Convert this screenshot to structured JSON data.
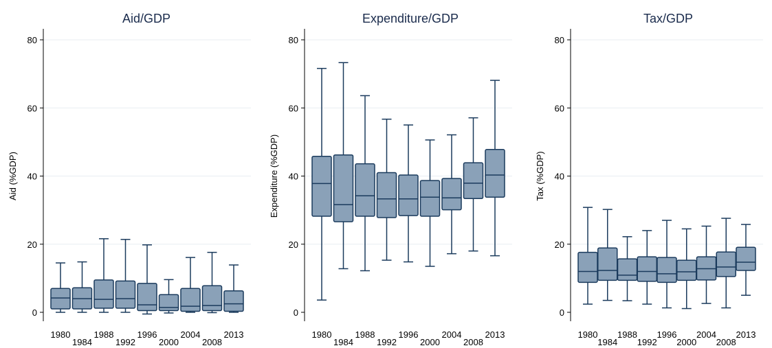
{
  "chart_data": [
    {
      "type": "box",
      "title": "Aid/GDP",
      "ylabel": "Aid (%GDP)",
      "ylim": [
        0,
        80
      ],
      "yticks": [
        0,
        20,
        40,
        60,
        80
      ],
      "categories": [
        "1980",
        "1984",
        "1988",
        "1992",
        "1996",
        "2000",
        "2004",
        "2008",
        "2013"
      ],
      "boxes": [
        {
          "whisker_low": 0.0,
          "q1": 1.0,
          "median": 4.2,
          "q3": 7.0,
          "whisker_high": 14.5
        },
        {
          "whisker_low": 0.0,
          "q1": 1.0,
          "median": 4.0,
          "q3": 7.2,
          "whisker_high": 14.8
        },
        {
          "whisker_low": 0.0,
          "q1": 1.2,
          "median": 3.8,
          "q3": 9.5,
          "whisker_high": 21.6
        },
        {
          "whisker_low": 0.0,
          "q1": 1.2,
          "median": 4.0,
          "q3": 9.2,
          "whisker_high": 21.4
        },
        {
          "whisker_low": -0.5,
          "q1": 0.5,
          "median": 2.2,
          "q3": 8.5,
          "whisker_high": 19.8
        },
        {
          "whisker_low": -0.2,
          "q1": 0.5,
          "median": 1.4,
          "q3": 5.2,
          "whisker_high": 9.6
        },
        {
          "whisker_low": 0.0,
          "q1": 0.3,
          "median": 1.8,
          "q3": 7.0,
          "whisker_high": 16.1
        },
        {
          "whisker_low": -0.1,
          "q1": 0.5,
          "median": 2.0,
          "q3": 7.8,
          "whisker_high": 17.6
        },
        {
          "whisker_low": 0.0,
          "q1": 0.3,
          "median": 2.5,
          "q3": 6.3,
          "whisker_high": 13.9
        }
      ]
    },
    {
      "type": "box",
      "title": "Expenditure/GDP",
      "ylabel": "Expenditure (%GDP)",
      "ylim": [
        0,
        80
      ],
      "yticks": [
        0,
        20,
        40,
        60,
        80
      ],
      "categories": [
        "1980",
        "1984",
        "1988",
        "1992",
        "1996",
        "2000",
        "2004",
        "2008",
        "2013"
      ],
      "boxes": [
        {
          "whisker_low": 3.6,
          "q1": 28.2,
          "median": 37.8,
          "q3": 45.8,
          "whisker_high": 71.6
        },
        {
          "whisker_low": 12.8,
          "q1": 26.6,
          "median": 31.6,
          "q3": 46.2,
          "whisker_high": 73.3
        },
        {
          "whisker_low": 12.2,
          "q1": 28.2,
          "median": 34.2,
          "q3": 43.6,
          "whisker_high": 63.6
        },
        {
          "whisker_low": 15.3,
          "q1": 27.8,
          "median": 33.3,
          "q3": 41.0,
          "whisker_high": 56.7
        },
        {
          "whisker_low": 14.8,
          "q1": 28.4,
          "median": 33.3,
          "q3": 40.3,
          "whisker_high": 55.0
        },
        {
          "whisker_low": 13.5,
          "q1": 28.2,
          "median": 33.8,
          "q3": 38.7,
          "whisker_high": 50.6
        },
        {
          "whisker_low": 17.2,
          "q1": 30.1,
          "median": 33.6,
          "q3": 39.3,
          "whisker_high": 52.1
        },
        {
          "whisker_low": 18.0,
          "q1": 33.4,
          "median": 37.9,
          "q3": 43.9,
          "whisker_high": 57.1
        },
        {
          "whisker_low": 16.6,
          "q1": 33.8,
          "median": 40.3,
          "q3": 47.8,
          "whisker_high": 68.1
        }
      ]
    },
    {
      "type": "box",
      "title": "Tax/GDP",
      "ylabel": "Tax (%GDP)",
      "ylim": [
        0,
        80
      ],
      "yticks": [
        0,
        20,
        40,
        60,
        80
      ],
      "categories": [
        "1980",
        "1984",
        "1988",
        "1992",
        "1996",
        "2000",
        "2004",
        "2008",
        "2013"
      ],
      "boxes": [
        {
          "whisker_low": 2.4,
          "q1": 8.8,
          "median": 12.0,
          "q3": 17.6,
          "whisker_high": 30.8
        },
        {
          "whisker_low": 3.5,
          "q1": 9.4,
          "median": 12.3,
          "q3": 18.9,
          "whisker_high": 30.2
        },
        {
          "whisker_low": 3.4,
          "q1": 9.4,
          "median": 10.9,
          "q3": 15.7,
          "whisker_high": 22.2
        },
        {
          "whisker_low": 2.4,
          "q1": 9.1,
          "median": 12.0,
          "q3": 16.3,
          "whisker_high": 24.0
        },
        {
          "whisker_low": 1.3,
          "q1": 8.8,
          "median": 11.3,
          "q3": 16.1,
          "whisker_high": 27.0
        },
        {
          "whisker_low": 1.1,
          "q1": 9.4,
          "median": 11.9,
          "q3": 15.3,
          "whisker_high": 24.5
        },
        {
          "whisker_low": 2.6,
          "q1": 9.5,
          "median": 12.8,
          "q3": 16.3,
          "whisker_high": 25.3
        },
        {
          "whisker_low": 1.3,
          "q1": 10.5,
          "median": 13.3,
          "q3": 17.7,
          "whisker_high": 27.6
        },
        {
          "whisker_low": 5.0,
          "q1": 12.3,
          "median": 14.7,
          "q3": 19.1,
          "whisker_high": 25.8
        }
      ]
    }
  ],
  "colors": {
    "box_fill": "#8aa1b8",
    "box_stroke": "#1a3a5c",
    "grid": "#e8edf2",
    "title": "#1a2b4c"
  },
  "legend": "none",
  "grid": "horizontal"
}
